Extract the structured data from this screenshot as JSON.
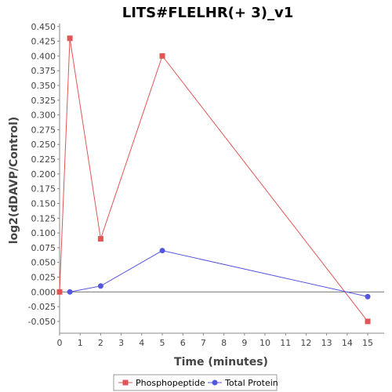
{
  "chart_data": {
    "type": "line",
    "title": "LITS#FLELHR(+ 3)_v1",
    "xlabel": "Time (minutes)",
    "ylabel": "log2(dDAVP/Control)",
    "xlim": [
      0,
      15.8
    ],
    "ylim": [
      -0.07,
      0.455
    ],
    "xticks": [
      0,
      1,
      2,
      3,
      4,
      5,
      6,
      7,
      8,
      9,
      10,
      11,
      12,
      13,
      14,
      15
    ],
    "yticks": [
      -0.05,
      -0.025,
      0.0,
      0.025,
      0.05,
      0.075,
      0.1,
      0.125,
      0.15,
      0.175,
      0.2,
      0.225,
      0.25,
      0.275,
      0.3,
      0.325,
      0.35,
      0.375,
      0.4,
      0.425,
      0.45
    ],
    "ytick_labels": [
      "-0.050",
      "-0.025",
      "0.000",
      "0.025",
      "0.050",
      "0.075",
      "0.100",
      "0.125",
      "0.150",
      "0.175",
      "0.200",
      "0.225",
      "0.250",
      "0.275",
      "0.300",
      "0.325",
      "0.350",
      "0.375",
      "0.400",
      "0.425",
      "0.450"
    ],
    "zero_line": true,
    "grid": false,
    "legend_position": "bottom-center",
    "series": [
      {
        "name": "Phosphopeptide",
        "color": "#e05555",
        "marker": "square",
        "x": [
          0,
          0.5,
          2,
          5,
          15
        ],
        "y": [
          0.0,
          0.43,
          0.09,
          0.4,
          -0.05
        ]
      },
      {
        "name": "Total Protein",
        "color": "#5555e0",
        "marker": "circle",
        "x": [
          0.5,
          2,
          5,
          15
        ],
        "y": [
          0.0,
          0.01,
          0.07,
          -0.008
        ]
      }
    ]
  }
}
